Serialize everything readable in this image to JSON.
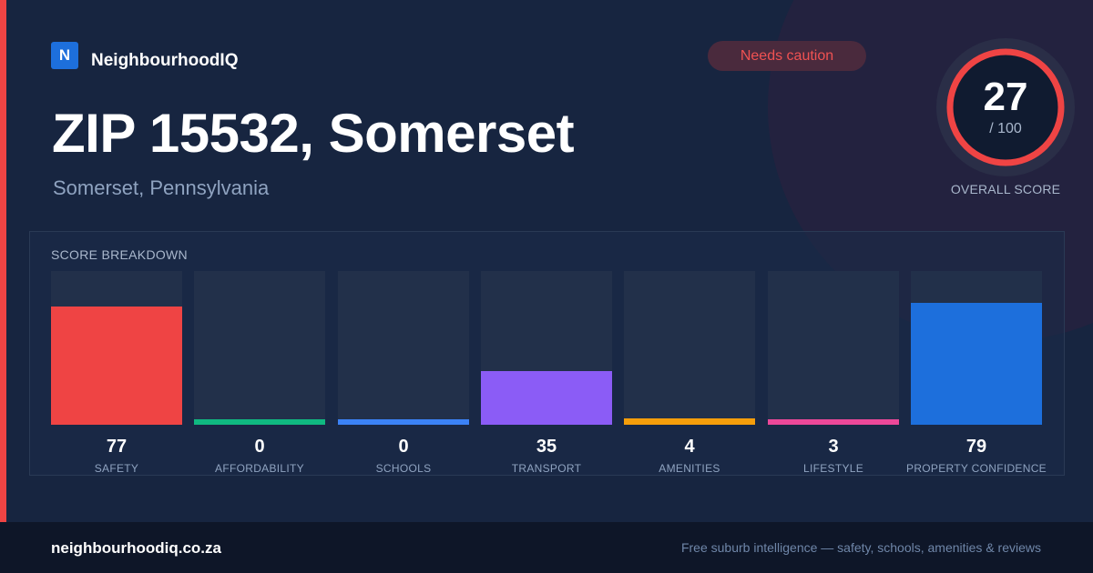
{
  "brand": {
    "logo_letter": "N",
    "name": "NeighbourhoodIQ"
  },
  "status_badge": {
    "label": "Needs caution",
    "color": "#f05252"
  },
  "title": "ZIP 15532, Somerset",
  "subtitle": "Somerset, Pennsylvania",
  "overall": {
    "value": "27",
    "max": "/ 100",
    "caption": "OVERALL SCORE",
    "ring_color": "#ef4444"
  },
  "breakdown": {
    "title": "SCORE BREAKDOWN",
    "metrics": [
      {
        "label": "SAFETY",
        "value": "77",
        "color": "#ef4444"
      },
      {
        "label": "AFFORDABILITY",
        "value": "0",
        "color": "#10b981"
      },
      {
        "label": "SCHOOLS",
        "value": "0",
        "color": "#3b82f6"
      },
      {
        "label": "TRANSPORT",
        "value": "35",
        "color": "#8b5cf6"
      },
      {
        "label": "AMENITIES",
        "value": "4",
        "color": "#f59e0b"
      },
      {
        "label": "LIFESTYLE",
        "value": "3",
        "color": "#ec4899"
      },
      {
        "label": "PROPERTY CONFIDENCE",
        "value": "79",
        "color": "#1d6fdc"
      }
    ]
  },
  "footer": {
    "site": "neighbourhoodiq.co.za",
    "tagline": "Free suburb intelligence — safety, schools, amenities & reviews"
  }
}
